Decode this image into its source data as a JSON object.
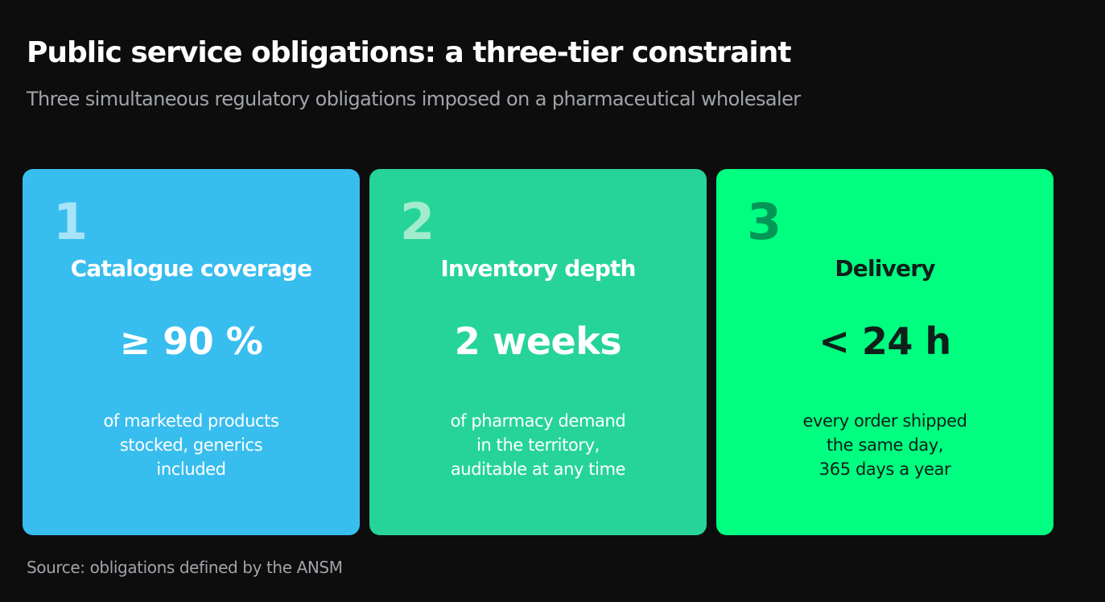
{
  "title": "Public service obligations: a three-tier constraint",
  "subtitle": "Three simultaneous regulatory obligations imposed on a pharmaceutical wholesaler",
  "source": "Source: obligations defined by the ANSM",
  "cards": [
    {
      "number": "1",
      "heading": "Catalogue coverage",
      "value": "≥ 90 %",
      "description_lines": [
        "of marketed products",
        "stocked, generics",
        "included"
      ],
      "colors": {
        "background": "#38bdef",
        "number": "#a6e4f8",
        "text": "#ffffff"
      }
    },
    {
      "number": "2",
      "heading": "Inventory depth",
      "value": "2 weeks",
      "description_lines": [
        "of pharmacy demand",
        "in the territory,",
        "auditable at any time"
      ],
      "colors": {
        "background": "#26d49a",
        "number": "#a2eccd",
        "text": "#ffffff"
      }
    },
    {
      "number": "3",
      "heading": "Delivery",
      "value": "< 24 h",
      "description_lines": [
        "every order shipped",
        "the same day,",
        "365 days a year"
      ],
      "colors": {
        "background": "#00ff80",
        "number": "#039757",
        "text": "#0f1f1a"
      }
    }
  ]
}
